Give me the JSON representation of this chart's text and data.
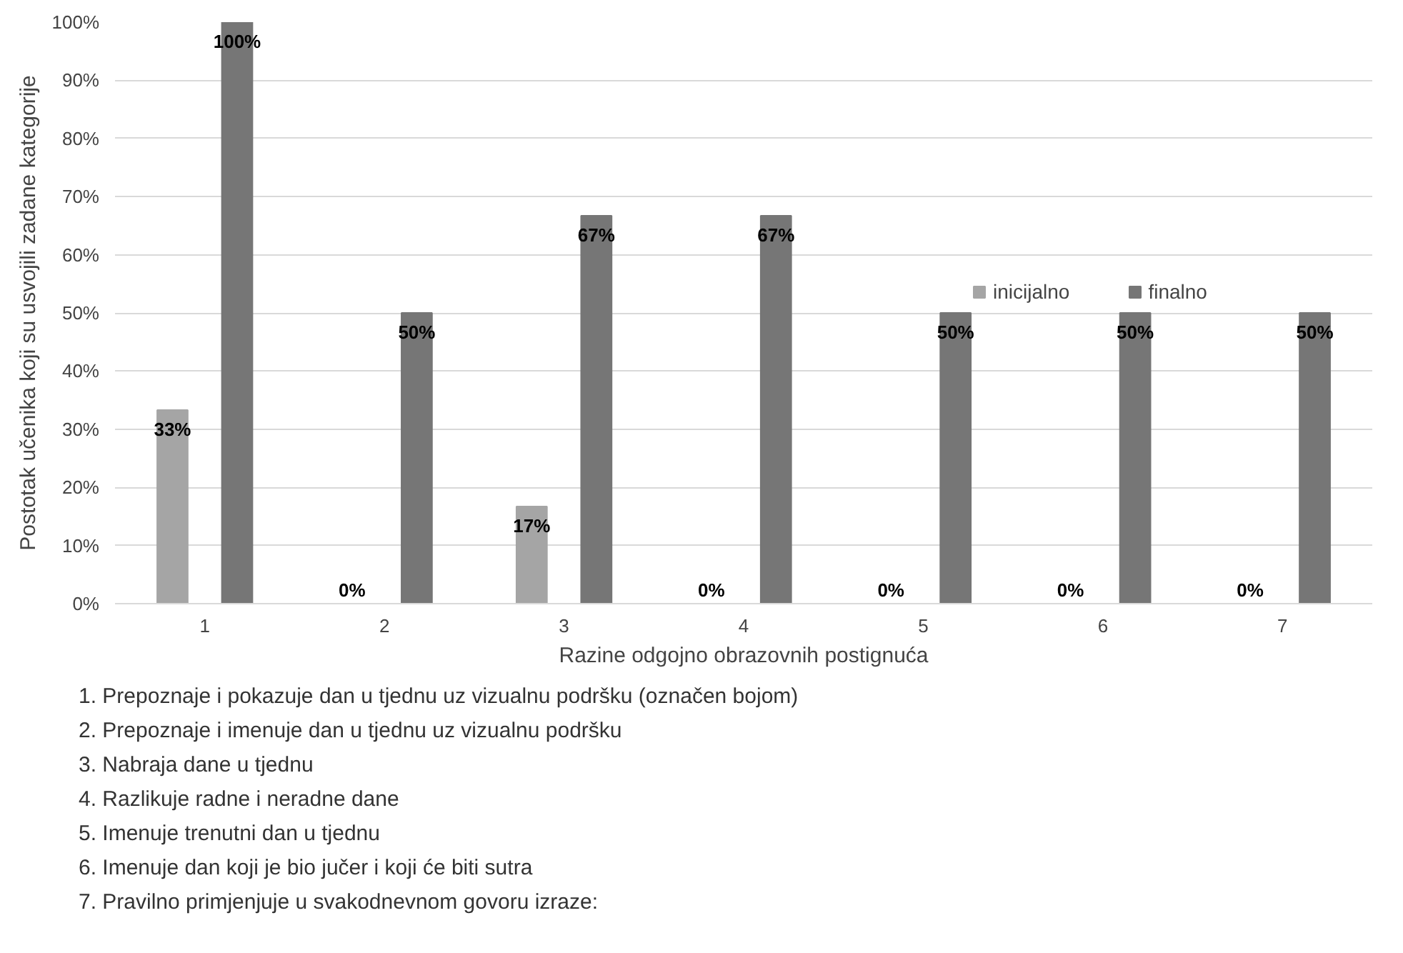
{
  "chart_data": {
    "type": "bar",
    "xlabel": "Razine odgojno obrazovnih postignuća",
    "ylabel": "Postotak učenika koji su usvojili zadane kategorije",
    "categories": [
      "1",
      "2",
      "3",
      "4",
      "5",
      "6",
      "7"
    ],
    "series": [
      {
        "name": "inicijalno",
        "color": "#a5a5a5",
        "values": [
          33.3,
          0,
          16.7,
          0,
          0,
          0,
          0
        ],
        "value_labels": [
          "33%",
          "0%",
          "17%",
          "0%",
          "0%",
          "0%",
          "0%"
        ]
      },
      {
        "name": "finalno",
        "color": "#767676",
        "values": [
          100,
          50,
          66.7,
          66.7,
          50,
          50,
          50
        ],
        "value_labels": [
          "100%",
          "50%",
          "67%",
          "67%",
          "50%",
          "50%",
          "50%"
        ]
      }
    ],
    "ylim": [
      0,
      100
    ],
    "yticks": [
      {
        "value": 0,
        "label": "0%"
      },
      {
        "value": 10,
        "label": "10%"
      },
      {
        "value": 20,
        "label": "20%"
      },
      {
        "value": 30,
        "label": "30%"
      },
      {
        "value": 40,
        "label": "40%"
      },
      {
        "value": 50,
        "label": "50%"
      },
      {
        "value": 60,
        "label": "60%"
      },
      {
        "value": 70,
        "label": "70%"
      },
      {
        "value": 80,
        "label": "80%"
      },
      {
        "value": 90,
        "label": "90%"
      },
      {
        "value": 100,
        "label": "100%"
      }
    ],
    "grid": "y",
    "legend": "top right",
    "annotations": [
      "1. Prepoznaje i pokazuje dan u tjednu uz vizualnu podršku (označen bojom)",
      "2. Prepoznaje i imenuje dan u tjednu uz vizualnu podršku",
      "3. Nabraja dane u tjednu",
      "4. Razlikuje radne i neradne dane",
      "5. Imenuje trenutni dan u tjednu",
      "6. Imenuje dan koji je bio jučer i koji će biti sutra",
      "7. Pravilno primjenjuje u svakodnevnom govoru izraze:"
    ]
  }
}
